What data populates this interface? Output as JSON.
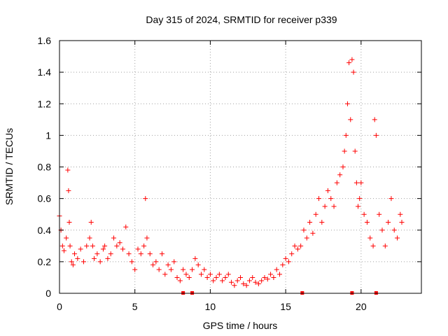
{
  "chart_data": {
    "type": "scatter",
    "title": "Day 315 of 2024, SRMTID for receiver p339",
    "xlabel": "GPS time / hours",
    "ylabel": "SRMTID / TECUs",
    "xlim": [
      0,
      24
    ],
    "ylim": [
      0,
      1.6
    ],
    "xticks": [
      0,
      5,
      10,
      15,
      20
    ],
    "yticks": [
      0,
      0.2,
      0.4,
      0.6,
      0.8,
      1,
      1.2,
      1.4,
      1.6
    ],
    "xtick_labels": [
      "0",
      "5",
      "10",
      "15",
      "20"
    ],
    "ytick_labels": [
      "0",
      "0.2",
      "0.4",
      "0.6",
      "0.8",
      "1",
      "1.2",
      "1.4",
      "1.6"
    ],
    "grid": true,
    "marker": "plus",
    "color": "#ff0000",
    "series": [
      {
        "name": "SRMTID",
        "x": [
          0.0,
          0.1,
          0.2,
          0.3,
          0.45,
          0.55,
          0.6,
          0.65,
          0.7,
          0.8,
          0.9,
          1.0,
          1.2,
          1.4,
          1.6,
          1.8,
          2.0,
          2.1,
          2.2,
          2.3,
          2.5,
          2.7,
          2.9,
          3.0,
          3.2,
          3.4,
          3.6,
          3.8,
          4.0,
          4.2,
          4.4,
          4.6,
          4.8,
          5.0,
          5.2,
          5.4,
          5.6,
          5.7,
          5.8,
          6.0,
          6.2,
          6.4,
          6.6,
          6.8,
          7.0,
          7.2,
          7.4,
          7.6,
          7.8,
          8.0,
          8.2,
          8.4,
          8.6,
          8.8,
          9.0,
          9.2,
          9.4,
          9.6,
          9.8,
          10.0,
          10.2,
          10.4,
          10.6,
          10.8,
          11.0,
          11.2,
          11.4,
          11.6,
          11.8,
          12.0,
          12.2,
          12.4,
          12.6,
          12.8,
          13.0,
          13.2,
          13.4,
          13.6,
          13.8,
          14.0,
          14.2,
          14.4,
          14.6,
          14.8,
          15.0,
          15.2,
          15.4,
          15.6,
          15.8,
          16.0,
          16.2,
          16.4,
          16.6,
          16.8,
          17.0,
          17.2,
          17.4,
          17.6,
          17.8,
          18.0,
          18.2,
          18.4,
          18.6,
          18.8,
          18.9,
          19.0,
          19.1,
          19.2,
          19.3,
          19.4,
          19.5,
          19.6,
          19.7,
          19.8,
          19.9,
          20.0,
          20.2,
          20.4,
          20.6,
          20.8,
          20.9,
          21.0,
          21.2,
          21.4,
          21.6,
          21.8,
          22.0,
          22.2,
          22.4,
          22.6,
          22.7
        ],
        "y": [
          0.49,
          0.4,
          0.3,
          0.27,
          0.35,
          0.78,
          0.65,
          0.45,
          0.3,
          0.2,
          0.18,
          0.25,
          0.22,
          0.28,
          0.2,
          0.3,
          0.35,
          0.45,
          0.3,
          0.22,
          0.25,
          0.2,
          0.28,
          0.3,
          0.22,
          0.25,
          0.35,
          0.3,
          0.32,
          0.28,
          0.42,
          0.25,
          0.2,
          0.15,
          0.28,
          0.25,
          0.3,
          0.6,
          0.35,
          0.25,
          0.18,
          0.2,
          0.15,
          0.25,
          0.12,
          0.18,
          0.15,
          0.2,
          0.1,
          0.08,
          0.15,
          0.12,
          0.1,
          0.15,
          0.22,
          0.18,
          0.12,
          0.15,
          0.1,
          0.12,
          0.08,
          0.1,
          0.12,
          0.08,
          0.1,
          0.12,
          0.07,
          0.05,
          0.08,
          0.1,
          0.06,
          0.05,
          0.08,
          0.1,
          0.07,
          0.06,
          0.08,
          0.1,
          0.09,
          0.12,
          0.1,
          0.15,
          0.12,
          0.18,
          0.22,
          0.2,
          0.25,
          0.3,
          0.28,
          0.3,
          0.4,
          0.35,
          0.45,
          0.38,
          0.5,
          0.6,
          0.45,
          0.55,
          0.65,
          0.6,
          0.55,
          0.7,
          0.75,
          0.8,
          0.9,
          1.0,
          1.2,
          1.46,
          1.1,
          1.48,
          1.4,
          0.9,
          0.7,
          0.55,
          0.6,
          0.7,
          0.5,
          0.45,
          0.35,
          0.3,
          1.1,
          1.0,
          0.5,
          0.4,
          0.3,
          0.45,
          0.6,
          0.4,
          0.35,
          0.5,
          0.45
        ]
      }
    ],
    "markers_on_xaxis": [
      8.2,
      8.8,
      16.1,
      19.4,
      21.0
    ]
  }
}
